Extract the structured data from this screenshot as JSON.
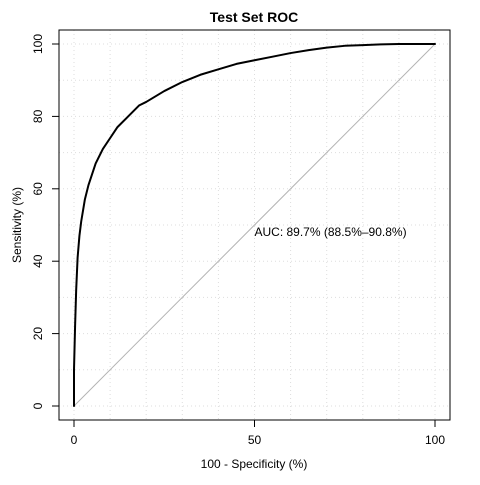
{
  "chart_data": {
    "type": "line",
    "title": "Test Set ROC",
    "xlabel": "100 - Specificity (%)",
    "ylabel": "Sensitivity (%)",
    "xlim": [
      0,
      100
    ],
    "ylim": [
      0,
      100
    ],
    "x_ticks": [
      0,
      50,
      100
    ],
    "y_ticks": [
      0,
      20,
      40,
      60,
      80,
      100
    ],
    "x_tick_labels": [
      "0",
      "50",
      "100"
    ],
    "y_tick_labels": [
      "0",
      "20",
      "40",
      "60",
      "80",
      "100"
    ],
    "grid": true,
    "grid_style": "dotted",
    "series": [
      {
        "x": [
          0,
          0,
          0.3,
          0.6,
          1,
          1.5,
          2,
          3,
          4,
          5,
          6,
          8,
          10,
          12,
          15,
          18,
          20,
          25,
          30,
          35,
          40,
          45,
          50,
          55,
          60,
          65,
          70,
          75,
          80,
          85,
          90,
          95,
          100
        ],
        "y": [
          0,
          10,
          22,
          32,
          41,
          47,
          51,
          57,
          61,
          64,
          67,
          71,
          74,
          77,
          80,
          83,
          84,
          87,
          89.5,
          91.5,
          93,
          94.5,
          95.5,
          96.5,
          97.5,
          98.3,
          99,
          99.5,
          99.7,
          99.9,
          100,
          100,
          100
        ]
      }
    ],
    "reference_line": {
      "x": [
        0,
        100
      ],
      "y": [
        0,
        100
      ]
    },
    "annotations": [
      {
        "text": "AUC: 89.7% (88.5%–90.8%)",
        "x": 50,
        "y": 48
      }
    ],
    "colors": {
      "curve": "#000000",
      "reference": "#b3b3b3",
      "grid": "#dddddd",
      "frame": "#000000"
    }
  }
}
